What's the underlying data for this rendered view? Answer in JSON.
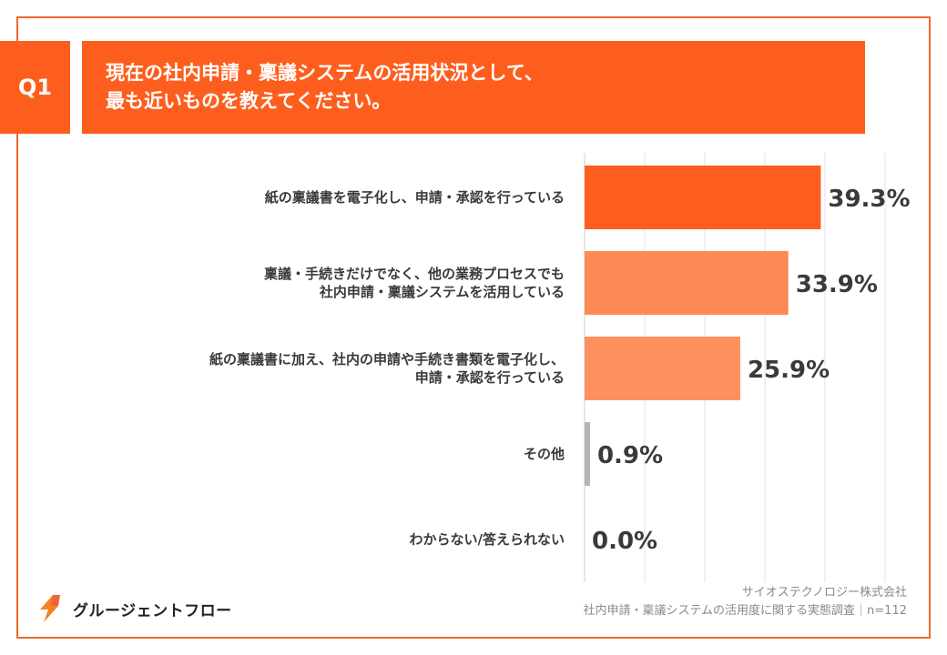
{
  "question": {
    "badge": "Q1",
    "title_line1": "現在の社内申請・稟議システムの活用状況として、",
    "title_line2": "最も近いものを教えてください。"
  },
  "chart_data": {
    "type": "bar",
    "orientation": "horizontal",
    "categories": [
      [
        "紙の稟議書を電子化し、申請・承認を行っている"
      ],
      [
        "稟議・手続きだけでなく、他の業務プロセスでも",
        "社内申請・稟議システムを活用している"
      ],
      [
        "紙の稟議書に加え、社内の申請や手続き書類を電子化し、",
        "申請・承認を行っている"
      ],
      [
        "その他"
      ],
      [
        "わからない/答えられない"
      ]
    ],
    "values": [
      39.3,
      33.9,
      25.9,
      0.9,
      0.0
    ],
    "value_labels": [
      "39.3%",
      "33.9%",
      "25.9%",
      "0.9%",
      "0.0%"
    ],
    "colors": [
      "#fe5e1d",
      "#fe8a55",
      "#fe8f5e",
      "#b4b4b4",
      "#b4b4b4"
    ],
    "xlim": [
      0,
      50
    ],
    "grid": true
  },
  "source": {
    "line1": "サイオステクノロジー株式会社",
    "line2": "社内申請・稟議システムの活用度に関する実態調査｜n=112"
  },
  "logo": {
    "text": "グルージェントフロー",
    "icon": "lightning-s-icon",
    "colors": [
      "#f6821f",
      "#e94a1b"
    ]
  }
}
